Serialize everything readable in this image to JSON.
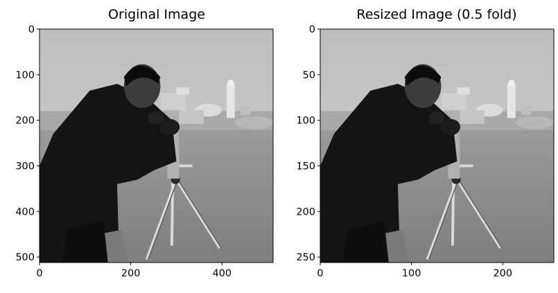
{
  "panels": [
    {
      "title": "Original Image",
      "x_ticks": [
        {
          "value": 0,
          "label": "0"
        },
        {
          "value": 200,
          "label": "200"
        },
        {
          "value": 400,
          "label": "400"
        }
      ],
      "y_ticks": [
        {
          "value": 0,
          "label": "0"
        },
        {
          "value": 100,
          "label": "100"
        },
        {
          "value": 200,
          "label": "200"
        },
        {
          "value": 300,
          "label": "300"
        },
        {
          "value": 400,
          "label": "400"
        },
        {
          "value": 500,
          "label": "500"
        }
      ],
      "x_range": [
        0,
        512
      ],
      "y_range": [
        0,
        512
      ]
    },
    {
      "title": "Resized Image (0.5 fold)",
      "x_ticks": [
        {
          "value": 0,
          "label": "0"
        },
        {
          "value": 100,
          "label": "100"
        },
        {
          "value": 200,
          "label": "200"
        }
      ],
      "y_ticks": [
        {
          "value": 0,
          "label": "0"
        },
        {
          "value": 50,
          "label": "50"
        },
        {
          "value": 100,
          "label": "100"
        },
        {
          "value": 150,
          "label": "150"
        },
        {
          "value": 200,
          "label": "200"
        },
        {
          "value": 250,
          "label": "250"
        }
      ],
      "x_range": [
        0,
        256
      ],
      "y_range": [
        0,
        256
      ]
    }
  ],
  "colors": {
    "sky": "#c8c8c8",
    "grass": "#8a8a8a",
    "coat": "#141414",
    "axis": "#000000"
  }
}
